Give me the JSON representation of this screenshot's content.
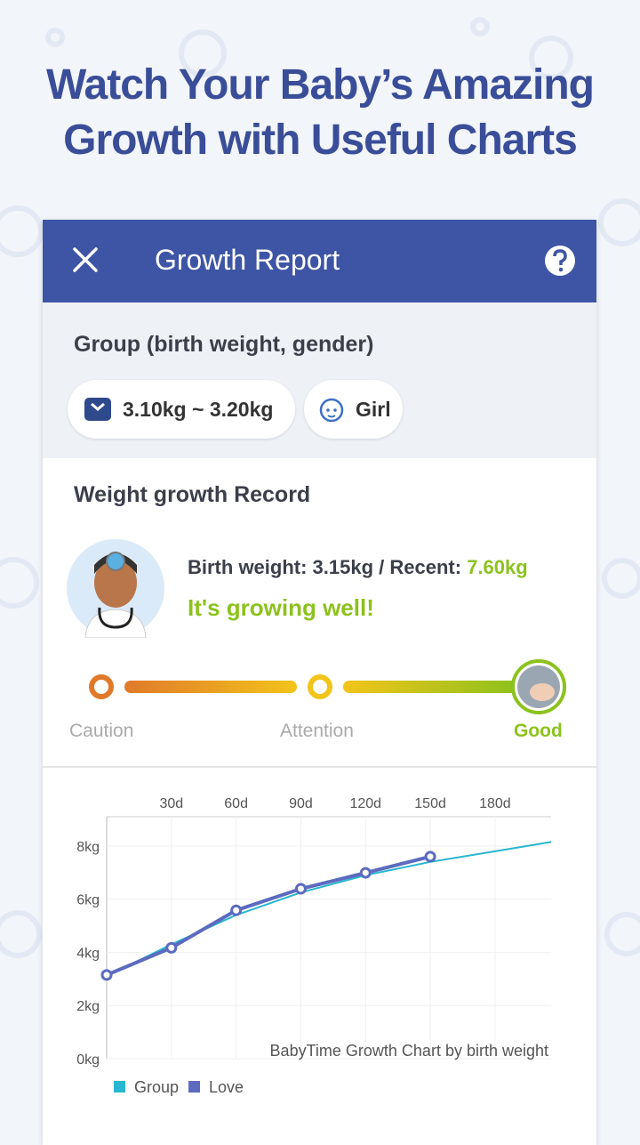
{
  "header": {
    "headline": [
      "Watch Your Baby’s Amazing",
      "Growth with Useful Charts"
    ]
  },
  "app_bar": {
    "title": "Growth Report"
  },
  "group": {
    "heading": "Group (birth weight, gender)",
    "weight_range": "3.10kg ~ 3.20kg",
    "gender": "Girl"
  },
  "record": {
    "heading": "Weight growth Record",
    "summary": "Birth weight: 3.15kg / Recent:",
    "recent": "7.60kg",
    "status": "It's growing well!",
    "scale": [
      "Caution",
      "Attention",
      "Good"
    ]
  },
  "chart_data": {
    "type": "line",
    "x": [
      0,
      30,
      60,
      90,
      120,
      150,
      180,
      206
    ],
    "series": [
      {
        "name": "Group",
        "color": "#29b6d0",
        "values": [
          3.1,
          4.3,
          5.4,
          6.25,
          6.9,
          7.4,
          7.8,
          8.15
        ]
      },
      {
        "name": "Love",
        "color": "#5c6bc0",
        "values": [
          3.15,
          4.17,
          5.58,
          6.39,
          6.99,
          7.6,
          null,
          null
        ]
      }
    ],
    "xlim": [
      0,
      206
    ],
    "xticks": [
      {
        "value": 30,
        "label": "30d"
      },
      {
        "value": 60,
        "label": "60d"
      },
      {
        "value": 90,
        "label": "90d"
      },
      {
        "value": 120,
        "label": "120d"
      },
      {
        "value": 150,
        "label": "150d"
      },
      {
        "value": 180,
        "label": "180d"
      }
    ],
    "ylim": [
      0,
      9.1
    ],
    "yticks": [
      {
        "value": 0,
        "label": "0kg"
      },
      {
        "value": 2,
        "label": "2kg"
      },
      {
        "value": 4,
        "label": "4kg"
      },
      {
        "value": 6,
        "label": "6kg"
      },
      {
        "value": 8,
        "label": "8kg"
      }
    ],
    "grid": true,
    "annotation": "BabyTime Growth Chart by birth weight"
  }
}
